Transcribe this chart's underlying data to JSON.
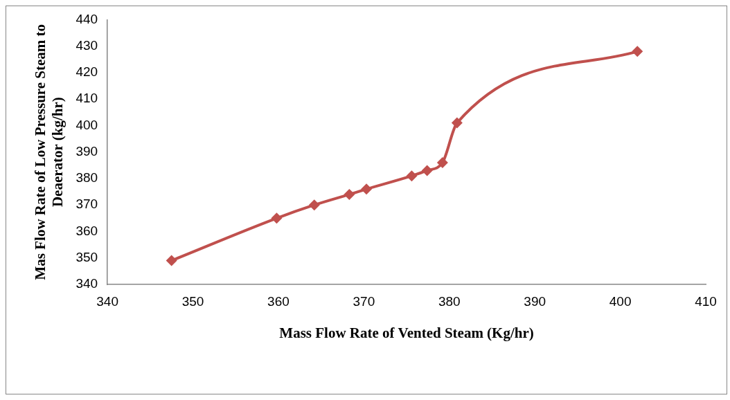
{
  "chart_data": {
    "type": "line",
    "xlabel": "Mass Flow Rate of Vented Steam (Kg/hr)",
    "ylabel": "Mas Flow Rate of Low Pressure Steam to Deaerator (kg/hr)",
    "x": [
      347.5,
      359.8,
      364.2,
      368.3,
      370.3,
      375.6,
      377.4,
      379.2,
      380.9,
      402.0
    ],
    "series": [
      {
        "color": "#c0504d",
        "values": [
          349,
          365,
          370,
          374,
          376,
          381,
          383,
          386,
          401,
          428
        ]
      }
    ],
    "xlim": [
      340,
      410
    ],
    "xticks": [
      340,
      350,
      360,
      370,
      380,
      390,
      400,
      410
    ],
    "ylim": [
      340,
      440
    ],
    "yticks": [
      340,
      350,
      360,
      370,
      380,
      390,
      400,
      410,
      420,
      430,
      440
    ],
    "grid": false,
    "legend": false,
    "marker": "diamond",
    "line_style": "solid"
  }
}
